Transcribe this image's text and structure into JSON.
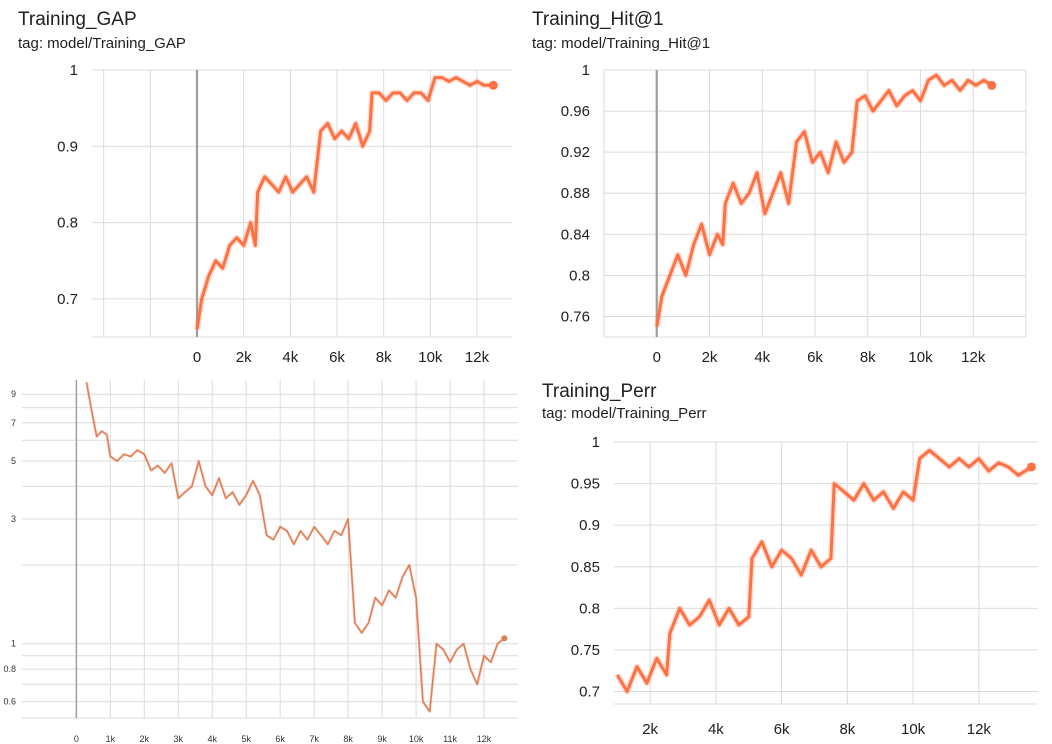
{
  "chart_data": [
    {
      "id": "gap",
      "type": "line",
      "title": "Training_GAP",
      "subtitle": "tag: model/Training_GAP",
      "color": "#ff7043",
      "xlim": [
        -4500,
        13500
      ],
      "ylim": [
        0.65,
        1.0
      ],
      "xticks": [
        0,
        2000,
        4000,
        6000,
        8000,
        10000,
        12000
      ],
      "xtick_labels": [
        "0",
        "2k",
        "4k",
        "6k",
        "8k",
        "10k",
        "12k"
      ],
      "yticks": [
        0.7,
        0.8,
        0.9,
        1.0
      ],
      "ytick_labels": [
        "0.7",
        "0.8",
        "0.9",
        "1"
      ],
      "series": [
        {
          "x": [
            0,
            200,
            500,
            800,
            1100,
            1400,
            1700,
            2000,
            2300,
            2500,
            2600,
            2900,
            3200,
            3500,
            3800,
            4100,
            4400,
            4700,
            5000,
            5300,
            5600,
            5900,
            6200,
            6500,
            6800,
            7100,
            7400,
            7500,
            7800,
            8100,
            8400,
            8700,
            9000,
            9300,
            9600,
            9900,
            10200,
            10500,
            10800,
            11100,
            11400,
            11700,
            12000,
            12300,
            12700
          ],
          "y": [
            0.66,
            0.7,
            0.73,
            0.75,
            0.74,
            0.77,
            0.78,
            0.77,
            0.8,
            0.77,
            0.84,
            0.86,
            0.85,
            0.84,
            0.86,
            0.84,
            0.85,
            0.86,
            0.84,
            0.92,
            0.93,
            0.91,
            0.92,
            0.91,
            0.93,
            0.9,
            0.92,
            0.97,
            0.97,
            0.96,
            0.97,
            0.97,
            0.96,
            0.97,
            0.97,
            0.96,
            0.99,
            0.99,
            0.985,
            0.99,
            0.985,
            0.98,
            0.985,
            0.98,
            0.98
          ]
        }
      ]
    },
    {
      "id": "hit1",
      "type": "line",
      "title": "Training_Hit@1",
      "subtitle": "tag: model/Training_Hit@1",
      "color": "#ff7043",
      "xlim": [
        -2000,
        14000
      ],
      "ylim": [
        0.74,
        1.0
      ],
      "xticks": [
        0,
        2000,
        4000,
        6000,
        8000,
        10000,
        12000
      ],
      "xtick_labels": [
        "0",
        "2k",
        "4k",
        "6k",
        "8k",
        "10k",
        "12k"
      ],
      "yticks": [
        0.76,
        0.8,
        0.84,
        0.88,
        0.92,
        0.96,
        1.0
      ],
      "ytick_labels": [
        "0.76",
        "0.8",
        "0.84",
        "0.88",
        "0.92",
        "0.96",
        "1"
      ],
      "series": [
        {
          "x": [
            0,
            200,
            500,
            800,
            1100,
            1400,
            1700,
            2000,
            2300,
            2500,
            2600,
            2900,
            3200,
            3500,
            3800,
            4100,
            4400,
            4700,
            5000,
            5300,
            5600,
            5900,
            6200,
            6500,
            6800,
            7100,
            7400,
            7600,
            7900,
            8200,
            8500,
            8800,
            9100,
            9400,
            9700,
            10000,
            10300,
            10600,
            10900,
            11200,
            11500,
            11800,
            12100,
            12400,
            12700
          ],
          "y": [
            0.75,
            0.78,
            0.8,
            0.82,
            0.8,
            0.83,
            0.85,
            0.82,
            0.84,
            0.83,
            0.87,
            0.89,
            0.87,
            0.88,
            0.9,
            0.86,
            0.88,
            0.9,
            0.87,
            0.93,
            0.94,
            0.91,
            0.92,
            0.9,
            0.93,
            0.91,
            0.92,
            0.97,
            0.975,
            0.96,
            0.97,
            0.98,
            0.965,
            0.975,
            0.98,
            0.97,
            0.99,
            0.995,
            0.985,
            0.99,
            0.98,
            0.99,
            0.985,
            0.99,
            0.985
          ]
        }
      ]
    },
    {
      "id": "loss",
      "type": "line",
      "title": "",
      "subtitle": "",
      "color": "#e07b53",
      "xlim": [
        -1600,
        13000
      ],
      "ylim_log": [
        0.52,
        10.2
      ],
      "log_scale": true,
      "xticks": [
        0,
        1000,
        2000,
        3000,
        4000,
        5000,
        6000,
        7000,
        8000,
        9000,
        10000,
        11000,
        12000
      ],
      "xtick_labels": [
        "0",
        "1k",
        "2k",
        "3k",
        "4k",
        "5k",
        "6k",
        "7k",
        "8k",
        "9k",
        "10k",
        "11k",
        "12k"
      ],
      "yticks": [
        0.6,
        0.8,
        1,
        3,
        5,
        7,
        9
      ],
      "ytick_labels": [
        "0.6",
        "0.8",
        "1",
        "3",
        "5",
        "7",
        "9"
      ],
      "series": [
        {
          "x": [
            300,
            450,
            600,
            750,
            900,
            1000,
            1200,
            1400,
            1600,
            1800,
            2000,
            2200,
            2400,
            2600,
            2800,
            3000,
            3200,
            3400,
            3600,
            3800,
            4000,
            4200,
            4400,
            4600,
            4800,
            5000,
            5200,
            5400,
            5600,
            5800,
            6000,
            6200,
            6400,
            6600,
            6800,
            7000,
            7200,
            7400,
            7600,
            7800,
            8000,
            8200,
            8400,
            8600,
            8800,
            9000,
            9200,
            9400,
            9600,
            9800,
            10000,
            10200,
            10400,
            10600,
            10800,
            11000,
            11200,
            11400,
            11600,
            11800,
            12000,
            12200,
            12400,
            12600
          ],
          "y": [
            10.0,
            7.8,
            6.2,
            6.5,
            6.3,
            5.2,
            5.0,
            5.3,
            5.2,
            5.5,
            5.3,
            4.6,
            4.8,
            4.5,
            4.9,
            3.6,
            3.8,
            4.0,
            5.0,
            4.0,
            3.7,
            4.3,
            3.6,
            3.8,
            3.4,
            3.7,
            4.2,
            3.7,
            2.6,
            2.5,
            2.8,
            2.7,
            2.4,
            2.7,
            2.5,
            2.8,
            2.6,
            2.4,
            2.7,
            2.6,
            3.0,
            1.2,
            1.1,
            1.2,
            1.5,
            1.4,
            1.6,
            1.5,
            1.8,
            2.0,
            1.5,
            0.6,
            0.55,
            1.0,
            0.95,
            0.85,
            0.95,
            1.0,
            0.8,
            0.7,
            0.9,
            0.85,
            1.0,
            1.05
          ]
        }
      ]
    },
    {
      "id": "perr",
      "type": "line",
      "title": "Training_Perr",
      "subtitle": "tag: model/Training_Perr",
      "color": "#ff7043",
      "xlim": [
        900,
        13800
      ],
      "ylim": [
        0.685,
        1.0
      ],
      "xticks": [
        2000,
        4000,
        6000,
        8000,
        10000,
        12000
      ],
      "xtick_labels": [
        "2k",
        "4k",
        "6k",
        "8k",
        "10k",
        "12k"
      ],
      "yticks": [
        0.7,
        0.75,
        0.8,
        0.85,
        0.9,
        0.95,
        1.0
      ],
      "ytick_labels": [
        "0.7",
        "0.75",
        "0.8",
        "0.85",
        "0.9",
        "0.95",
        "1"
      ],
      "series": [
        {
          "x": [
            1000,
            1300,
            1600,
            1900,
            2200,
            2500,
            2600,
            2900,
            3200,
            3500,
            3800,
            4100,
            4400,
            4700,
            5000,
            5100,
            5400,
            5700,
            6000,
            6300,
            6600,
            6900,
            7200,
            7500,
            7600,
            7900,
            8200,
            8500,
            8800,
            9100,
            9400,
            9700,
            10000,
            10200,
            10500,
            10800,
            11100,
            11400,
            11700,
            12000,
            12300,
            12600,
            12900,
            13200,
            13600
          ],
          "y": [
            0.72,
            0.7,
            0.73,
            0.71,
            0.74,
            0.72,
            0.77,
            0.8,
            0.78,
            0.79,
            0.81,
            0.78,
            0.8,
            0.78,
            0.79,
            0.86,
            0.88,
            0.85,
            0.87,
            0.86,
            0.84,
            0.87,
            0.85,
            0.86,
            0.95,
            0.94,
            0.93,
            0.95,
            0.93,
            0.94,
            0.92,
            0.94,
            0.93,
            0.98,
            0.99,
            0.98,
            0.97,
            0.98,
            0.97,
            0.98,
            0.965,
            0.975,
            0.97,
            0.96,
            0.97
          ]
        }
      ]
    }
  ]
}
